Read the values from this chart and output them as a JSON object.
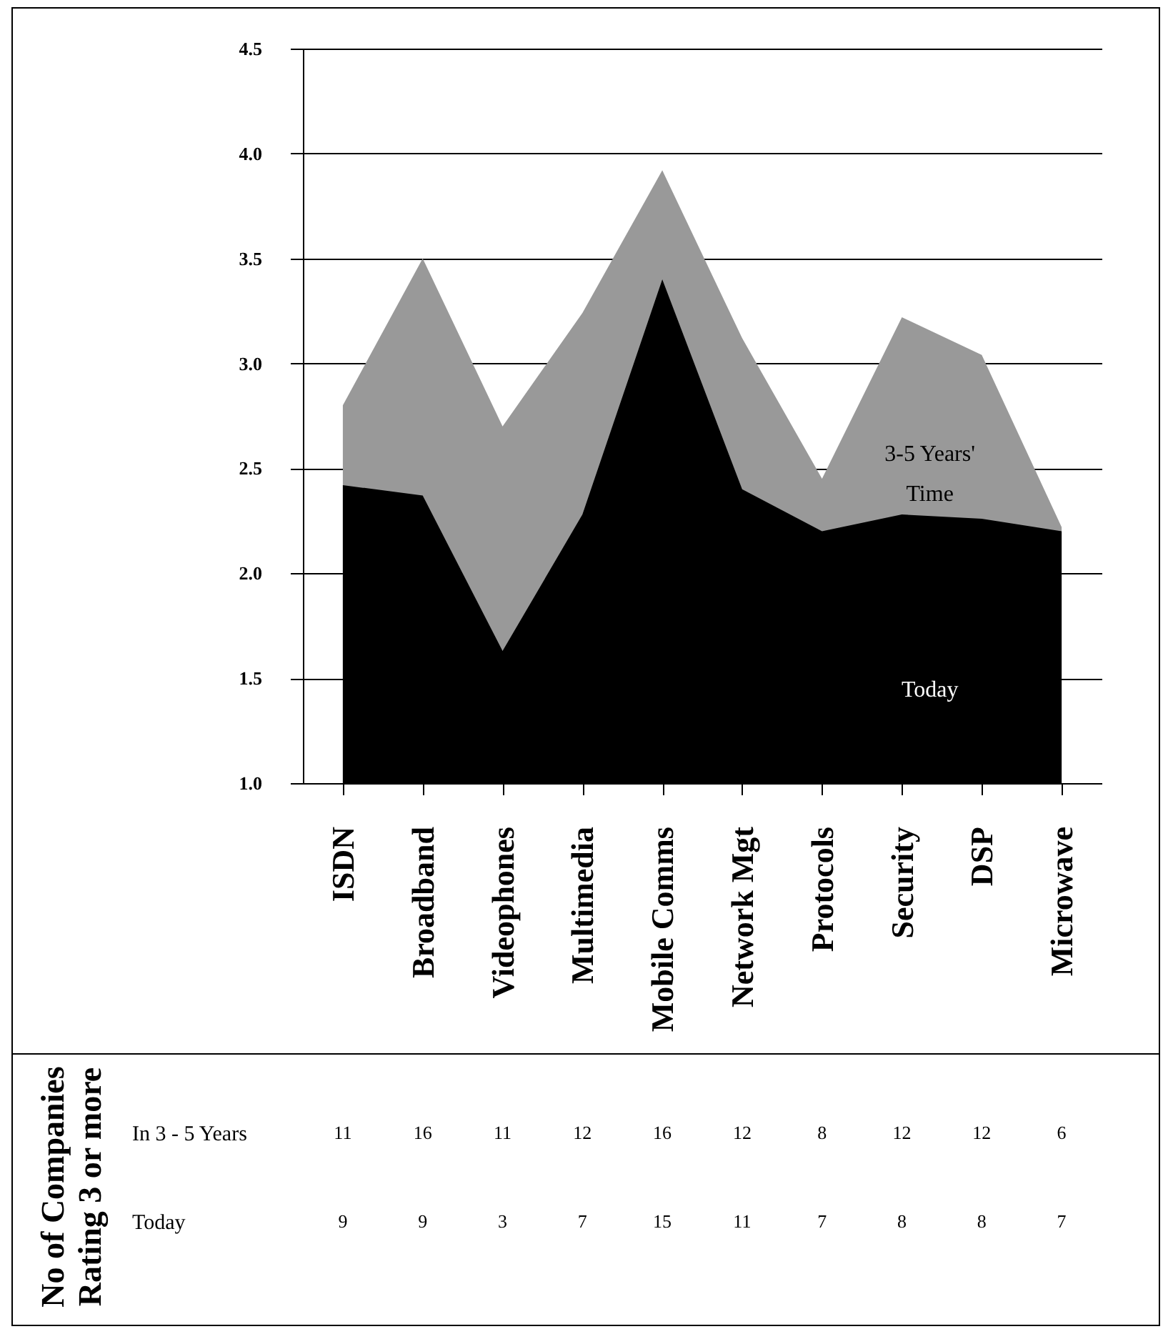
{
  "chart_data": [
    {
      "type": "area",
      "categories": [
        "ISDN",
        "Broadband",
        "Videophones",
        "Multimedia",
        "Mobile Comms",
        "Network Mgt",
        "Protocols",
        "Security",
        "DSP",
        "Microwave"
      ],
      "series": [
        {
          "name": "3-5 Years' Time",
          "color": "#999999",
          "values": [
            2.8,
            3.5,
            2.7,
            3.24,
            3.92,
            3.12,
            2.45,
            3.22,
            3.04,
            2.22
          ]
        },
        {
          "name": "Today",
          "color": "#000000",
          "values": [
            2.42,
            2.37,
            1.63,
            2.28,
            3.4,
            2.4,
            2.2,
            2.28,
            2.26,
            2.2
          ]
        }
      ],
      "ylim": [
        1,
        4.5
      ],
      "yticks": [
        {
          "value": 1,
          "label": "1.0"
        },
        1.5,
        {
          "value": 2,
          "label": "2.0"
        },
        2.5,
        {
          "value": 3,
          "label": "3.0"
        },
        3.5,
        {
          "value": 4,
          "label": "4.0"
        },
        4.5
      ],
      "grid": "y",
      "legend": false
    },
    {
      "type": "heatmap",
      "ylabel": "No of Companies Rating 3 or more",
      "categories": [
        null,
        null,
        null,
        null,
        null,
        null,
        null,
        null,
        null,
        null
      ],
      "y_categories": [
        "In 3 - 5 Years",
        "Today"
      ],
      "cells": [
        [
          11,
          16,
          11,
          12,
          16,
          12,
          8,
          12,
          12,
          6
        ],
        [
          9,
          9,
          3,
          7,
          15,
          11,
          7,
          8,
          8,
          7
        ]
      ],
      "data_labels": true,
      "tick_labels": "y"
    }
  ]
}
